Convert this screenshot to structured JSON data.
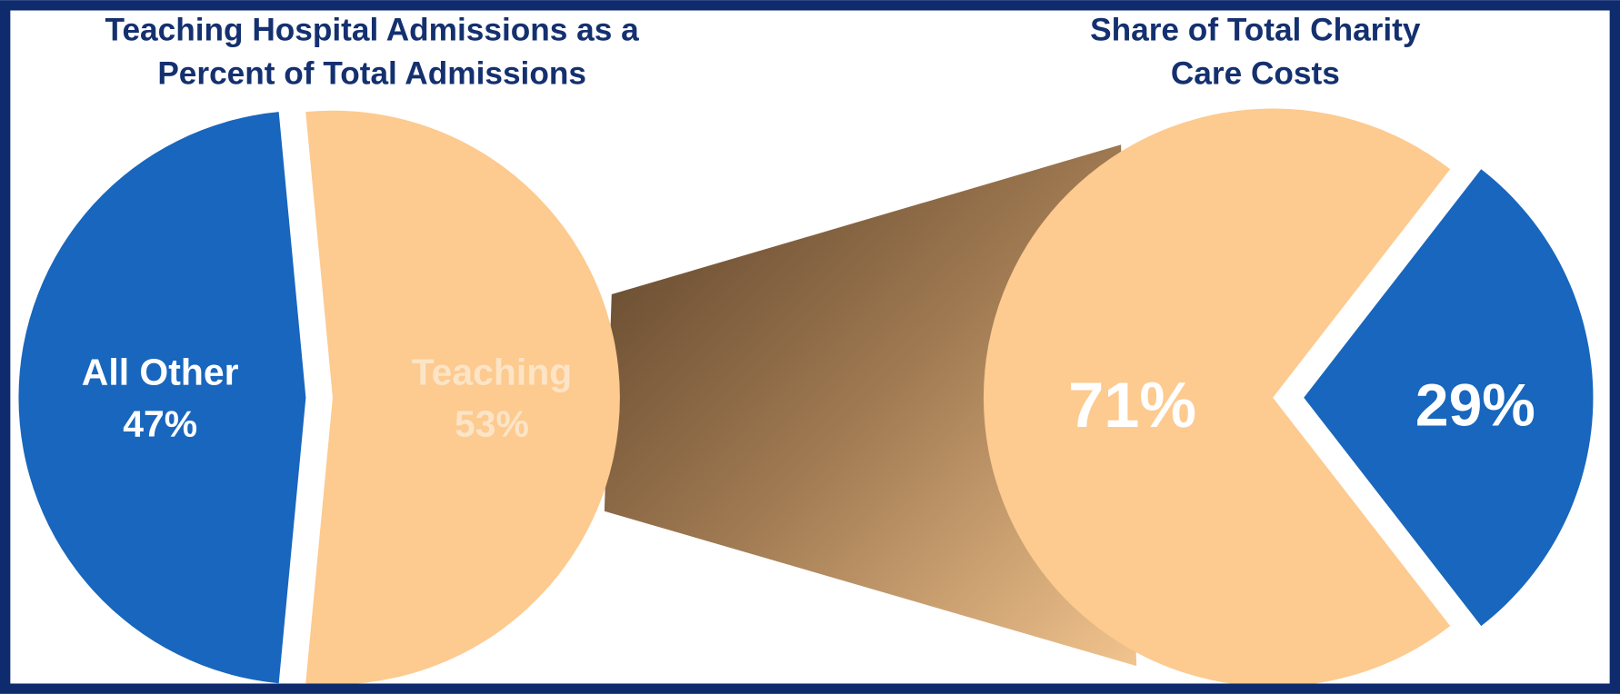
{
  "chart_data": [
    {
      "type": "pie",
      "title": [
        "Teaching Hospital Admissions as a",
        "Percent of Total Admissions"
      ],
      "categories": [
        "All Other",
        "Teaching"
      ],
      "values": [
        47,
        53
      ],
      "value_labels": [
        "47%",
        "53%"
      ],
      "colors": [
        "#1866bd",
        "#fdca8f"
      ]
    },
    {
      "type": "pie",
      "title": [
        "Share of Total Charity",
        "Care Costs"
      ],
      "values": [
        71,
        29
      ],
      "value_labels": [
        "71%",
        "29%"
      ],
      "colors": [
        "#fdca8f",
        "#1866bd"
      ]
    }
  ]
}
